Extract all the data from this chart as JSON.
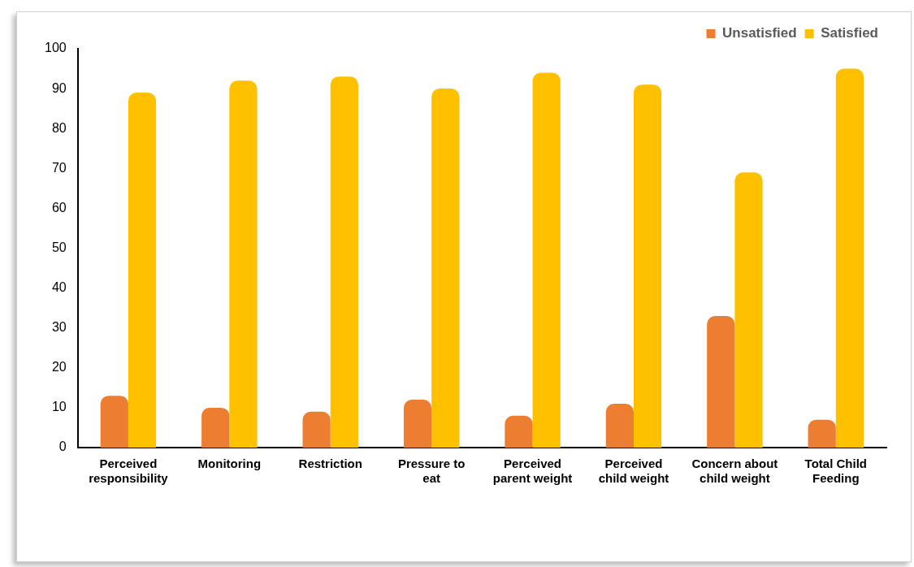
{
  "chart_data": {
    "type": "bar",
    "categories": [
      "Perceived responsibility",
      "Monitoring",
      "Restriction",
      "Pressure to eat",
      "Perceived parent weight",
      "Perceived child weight",
      "Concern about child weight",
      "Total Child Feeding"
    ],
    "series": [
      {
        "name": "Unsatisfied",
        "color": "#ed7d31",
        "values": [
          13,
          10,
          9,
          12,
          8,
          11,
          33,
          7
        ]
      },
      {
        "name": "Satisfied",
        "color": "#ffc000",
        "values": [
          89,
          92,
          93,
          90,
          94,
          91,
          69,
          95
        ]
      }
    ],
    "ylim": [
      0,
      100
    ],
    "yticks": [
      0,
      10,
      20,
      30,
      40,
      50,
      60,
      70,
      80,
      90,
      100
    ],
    "grid": false,
    "legend": "top right"
  }
}
